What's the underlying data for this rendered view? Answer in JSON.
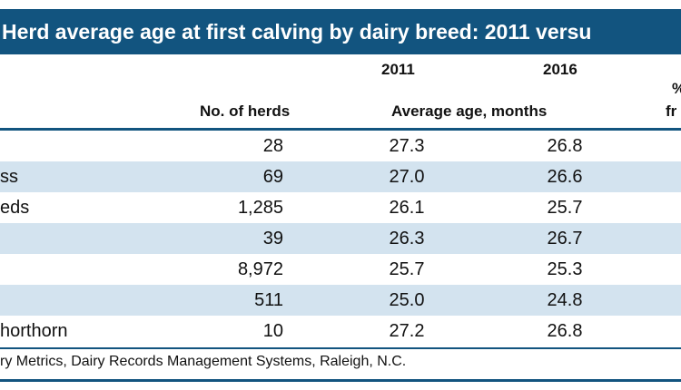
{
  "title": "Herd average age at first calving by dairy breed: 2011 versu",
  "header": {
    "year_2011": "2011",
    "year_2016": "2016",
    "no_of_herds": "No. of herds",
    "average_age": "Average age, months",
    "partial_col_top": "%",
    "partial_col_bottom": "fr"
  },
  "rows": [
    {
      "breed": "",
      "herds": "28",
      "age_2011": "27.3",
      "age_2016": "26.8"
    },
    {
      "breed": "ss",
      "herds": "69",
      "age_2011": "27.0",
      "age_2016": "26.6"
    },
    {
      "breed": "eds",
      "herds": "1,285",
      "age_2011": "26.1",
      "age_2016": "25.7"
    },
    {
      "breed": "",
      "herds": "39",
      "age_2011": "26.3",
      "age_2016": "26.7"
    },
    {
      "breed": "",
      "herds": "8,972",
      "age_2011": "25.7",
      "age_2016": "25.3"
    },
    {
      "breed": "",
      "herds": "511",
      "age_2011": "25.0",
      "age_2016": "24.8"
    },
    {
      "breed": "horthorn",
      "herds": "10",
      "age_2011": "27.2",
      "age_2016": "26.8"
    }
  ],
  "source": "ry Metrics, Dairy Records Management Systems, Raleigh, N.C."
}
